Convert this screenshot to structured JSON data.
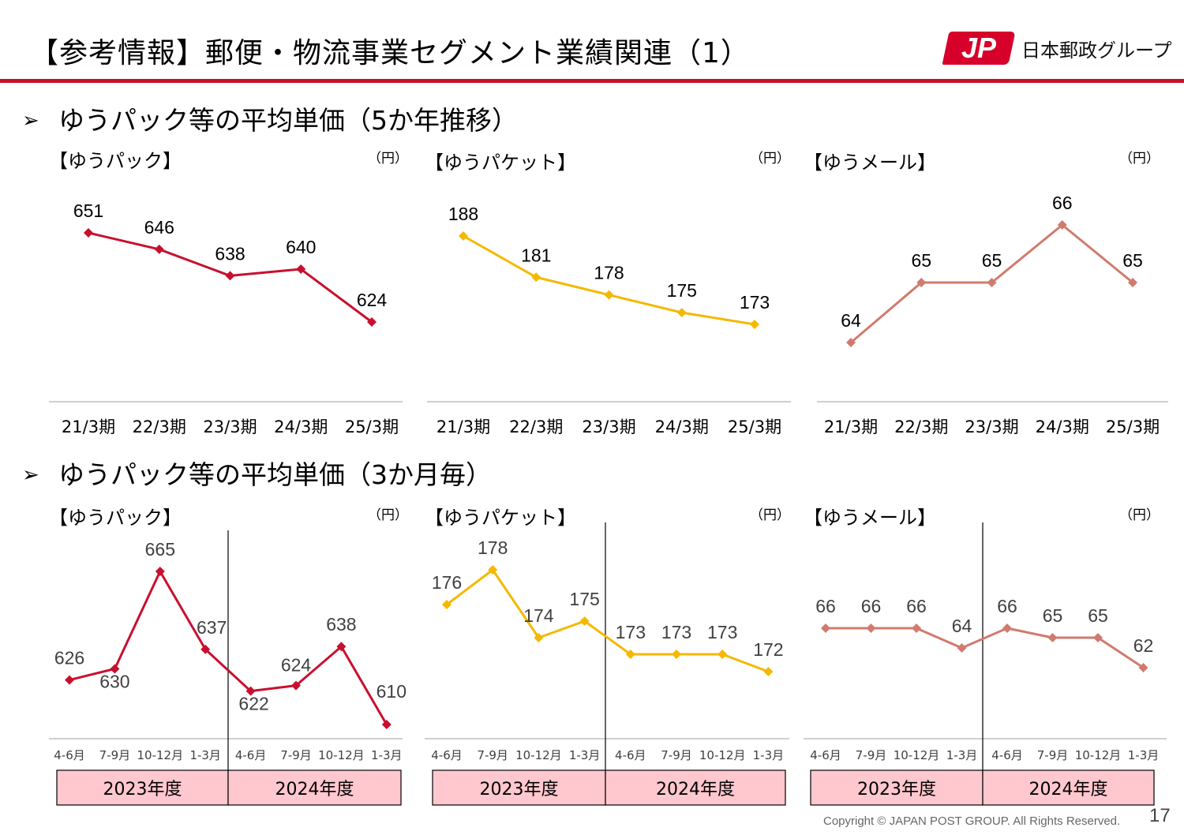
{
  "header": {
    "title": "【参考情報】郵便・物流事業セグメント業績関連（1）",
    "logo_mark": "JP",
    "logo_text": "日本郵政グループ",
    "accent_color": "#c8102e"
  },
  "sections": [
    {
      "label": "ゆうパック等の平均単価（5か年推移）",
      "arrow": "➢"
    },
    {
      "label": "ゆうパック等の平均単価（3か月毎）",
      "arrow": "➢"
    }
  ],
  "unit_label": "（円）",
  "fiscal_years": [
    "2023年度",
    "2024年度"
  ],
  "footer": {
    "copyright": "Copyright © JAPAN POST GROUP. All Rights Reserved.",
    "page": "17"
  },
  "chart_data": [
    {
      "type": "line",
      "title": "【ゆうパック】",
      "unit": "（円）",
      "color": "#c8102e",
      "categories": [
        "21/3期",
        "22/3期",
        "23/3期",
        "24/3期",
        "25/3期"
      ],
      "values": [
        651,
        646,
        638,
        640,
        624
      ]
    },
    {
      "type": "line",
      "title": "【ゆうパケット】",
      "unit": "（円）",
      "color": "#f5b800",
      "categories": [
        "21/3期",
        "22/3期",
        "23/3期",
        "24/3期",
        "25/3期"
      ],
      "values": [
        188,
        181,
        178,
        175,
        173
      ]
    },
    {
      "type": "line",
      "title": "【ゆうメール】",
      "unit": "（円）",
      "color": "#d07b6e",
      "categories": [
        "21/3期",
        "22/3期",
        "23/3期",
        "24/3期",
        "25/3期"
      ],
      "values": [
        64,
        65,
        65,
        66,
        65
      ]
    },
    {
      "type": "line",
      "title": "【ゆうパック】",
      "unit": "（円）",
      "color": "#c8102e",
      "categories": [
        "4-6月",
        "7-9月",
        "10-12月",
        "1-3月",
        "4-6月",
        "7-9月",
        "10-12月",
        "1-3月"
      ],
      "values": [
        626,
        630,
        665,
        637,
        622,
        624,
        638,
        610
      ],
      "groups": [
        "2023年度",
        "2024年度"
      ]
    },
    {
      "type": "line",
      "title": "【ゆうパケット】",
      "unit": "（円）",
      "color": "#f5b800",
      "categories": [
        "4-6月",
        "7-9月",
        "10-12月",
        "1-3月",
        "4-6月",
        "7-9月",
        "10-12月",
        "1-3月"
      ],
      "values": [
        176,
        178,
        174,
        175,
        173,
        173,
        173,
        172
      ],
      "groups": [
        "2023年度",
        "2024年度"
      ]
    },
    {
      "type": "line",
      "title": "【ゆうメール】",
      "unit": "（円）",
      "color": "#d07b6e",
      "categories": [
        "4-6月",
        "7-9月",
        "10-12月",
        "1-3月",
        "4-6月",
        "7-9月",
        "10-12月",
        "1-3月"
      ],
      "values": [
        66,
        66,
        66,
        64,
        66,
        65,
        65,
        62
      ],
      "groups": [
        "2023年度",
        "2024年度"
      ]
    }
  ]
}
